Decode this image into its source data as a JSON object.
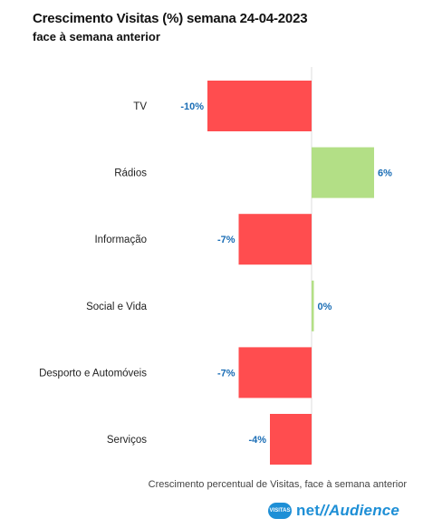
{
  "header": {
    "title": "Crescimento Visitas (%) semana 24-04-2023",
    "subtitle": "face à semana anterior"
  },
  "footnote": "Crescimento percentual de Visitas, face à semana anterior",
  "logo": {
    "badge_text": "VISITAS",
    "net": "net",
    "slash": "//",
    "audience": "Audience"
  },
  "colors": {
    "negative": "#ff4d4f",
    "positive": "#b3df86",
    "value_label": "#1a6db5",
    "brand": "#1e8fd6"
  },
  "chart_data": {
    "type": "bar",
    "orientation": "horizontal",
    "title": "Crescimento Visitas (%) semana 24-04-2023",
    "subtitle": "face à semana anterior",
    "categories": [
      "TV",
      "Rádios",
      "Informação",
      "Social e Vida",
      "Desporto e Automóveis",
      "Serviços"
    ],
    "values": [
      -10,
      6,
      -7,
      0,
      -7,
      -4
    ],
    "value_labels": [
      "-10%",
      "6%",
      "-7%",
      "0%",
      "-7%",
      "-4%"
    ],
    "units": "%",
    "grid": false,
    "legend": false
  }
}
